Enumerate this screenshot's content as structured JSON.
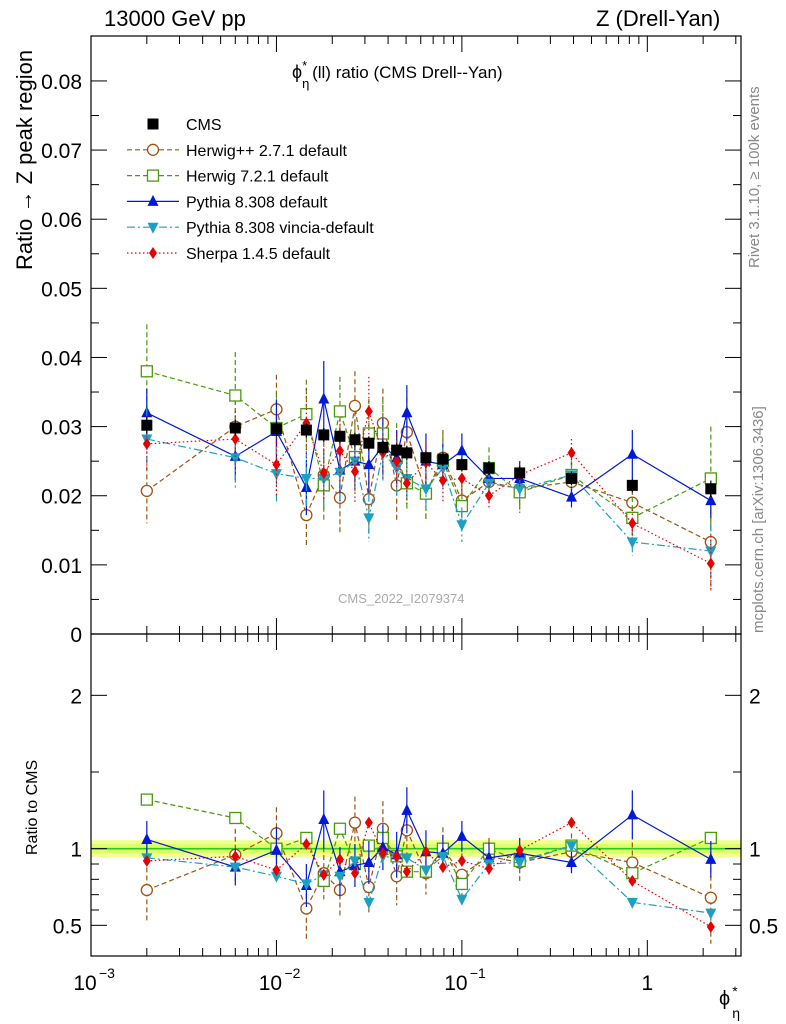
{
  "header": {
    "left": "13000 GeV pp",
    "right": "Z (Drell-Yan)"
  },
  "side_labels": {
    "rivet": "Rivet 3.1.10, ≥ 100k events",
    "mcplots": "mcplots.cern.ch [arXiv:1306.3436]"
  },
  "watermark": "CMS_2022_I2079374",
  "colors": {
    "cms": "#000000",
    "herwigpp": "#a0520e",
    "herwig7": "#4a9a0f",
    "pythia": "#0018d8",
    "vincia": "#1aa0c0",
    "sherpa": "#e80000",
    "band_inner": "#ddff66",
    "band_line": "#22cc22"
  },
  "chart_data": [
    {
      "type": "line",
      "title": "ϕ*η(ll) ratio (CMS Drell--Yan)",
      "title_main": "ϕ",
      "title_sup": "*",
      "title_sub": "η",
      "title_rest": "(ll) ratio (CMS Drell--Yan)",
      "ylabel": "Ratio → Z peak region",
      "xscale": "log",
      "xlim": [
        0.001,
        3.2
      ],
      "ylim": [
        0,
        0.0865
      ],
      "yticks": [
        0,
        0.01,
        0.02,
        0.03,
        0.04,
        0.05,
        0.06,
        0.07,
        0.08
      ],
      "ytick_labels": [
        "0",
        "0.01",
        "0.02",
        "0.03",
        "0.04",
        "0.05",
        "0.06",
        "0.07",
        "0.08"
      ],
      "legend_position": "top-left",
      "x": [
        0.002,
        0.006,
        0.01,
        0.0145,
        0.018,
        0.022,
        0.0265,
        0.0315,
        0.0375,
        0.0445,
        0.0505,
        0.064,
        0.079,
        0.1,
        0.14,
        0.205,
        0.39,
        0.83,
        2.2
      ],
      "series": [
        {
          "name": "CMS",
          "key": "cms",
          "marker": "square",
          "line": "none",
          "values": [
            0.0302,
            0.0298,
            0.0297,
            0.0295,
            0.0288,
            0.0286,
            0.0281,
            0.0276,
            0.027,
            0.0266,
            0.0262,
            0.0255,
            0.0253,
            0.0245,
            0.024,
            0.0233,
            0.0225,
            0.0215,
            0.021
          ],
          "errors": [
            0.0012,
            0.0011,
            0.001,
            0.001,
            0.001,
            0.001,
            0.001,
            0.001,
            0.001,
            0.001,
            0.001,
            0.001,
            0.001,
            0.001,
            0.001,
            0.001,
            0.001,
            0.001,
            0.0012
          ]
        },
        {
          "name": "Herwig++ 2.7.1 default",
          "key": "herwigpp",
          "marker": "circle-open",
          "line": "dash",
          "values": [
            0.0207,
            0.03,
            0.0325,
            0.0172,
            0.023,
            0.0197,
            0.033,
            0.0195,
            0.0305,
            0.0215,
            0.0292,
            0.0204,
            0.0255,
            0.0193,
            0.022,
            0.021,
            0.022,
            0.019,
            0.0133
          ],
          "errors": [
            0.0047,
            0.005,
            0.005,
            0.0045,
            0.005,
            0.005,
            0.005,
            0.005,
            0.005,
            0.005,
            0.005,
            0.004,
            0.004,
            0.004,
            0.003,
            0.003,
            0.003,
            0.003,
            0.007
          ]
        },
        {
          "name": "Herwig 7.2.1 default",
          "key": "herwig7",
          "marker": "square-open",
          "line": "dash",
          "values": [
            0.038,
            0.0345,
            0.0298,
            0.0318,
            0.0215,
            0.0322,
            0.0256,
            0.029,
            0.029,
            0.0255,
            0.0218,
            0.0203,
            0.025,
            0.0185,
            0.024,
            0.0205,
            0.023,
            0.0168,
            0.0225
          ],
          "errors": [
            0.0068,
            0.0063,
            0.005,
            0.005,
            0.005,
            0.005,
            0.005,
            0.005,
            0.005,
            0.005,
            0.004,
            0.004,
            0.004,
            0.004,
            0.003,
            0.003,
            0.003,
            0.003,
            0.0075
          ]
        },
        {
          "name": "Pythia 8.308 default",
          "key": "pythia",
          "marker": "triangle-up",
          "line": "solid",
          "values": [
            0.032,
            0.0257,
            0.0293,
            0.0212,
            0.034,
            0.0237,
            0.025,
            0.0245,
            0.0272,
            0.0255,
            0.032,
            0.025,
            0.0245,
            0.0265,
            0.0225,
            0.0225,
            0.0198,
            0.026,
            0.0193
          ],
          "errors": [
            0.0035,
            0.0035,
            0.0045,
            0.004,
            0.0055,
            0.0045,
            0.004,
            0.004,
            0.004,
            0.004,
            0.004,
            0.004,
            0.003,
            0.0025,
            0.0025,
            0.0025,
            0.0015,
            0.0035,
            0.0025
          ]
        },
        {
          "name": "Pythia 8.308 vincia-default",
          "key": "vincia",
          "marker": "triangle-down",
          "line": "dashdot",
          "values": [
            0.0282,
            0.0255,
            0.0232,
            0.0225,
            0.0225,
            0.0234,
            0.025,
            0.0168,
            0.0262,
            0.024,
            0.0225,
            0.021,
            0.024,
            0.0158,
            0.0218,
            0.021,
            0.023,
            0.0133,
            0.012
          ],
          "errors": [
            0.0045,
            0.0045,
            0.004,
            0.004,
            0.004,
            0.004,
            0.004,
            0.0035,
            0.004,
            0.004,
            0.003,
            0.003,
            0.003,
            0.0025,
            0.002,
            0.002,
            0.002,
            0.002,
            0.004
          ]
        },
        {
          "name": "Sherpa 1.4.5 default",
          "key": "sherpa",
          "marker": "diamond",
          "line": "dot",
          "values": [
            0.0275,
            0.0282,
            0.0245,
            0.0305,
            0.0233,
            0.0265,
            0.0235,
            0.0322,
            0.0262,
            0.025,
            0.0218,
            0.0248,
            0.0222,
            0.0225,
            0.02,
            0.023,
            0.0262,
            0.016,
            0.0102
          ],
          "errors": [
            0.004,
            0.004,
            0.0045,
            0.005,
            0.004,
            0.0045,
            0.0045,
            0.005,
            0.004,
            0.004,
            0.003,
            0.003,
            0.003,
            0.0025,
            0.002,
            0.002,
            0.002,
            0.002,
            0.004
          ]
        }
      ]
    },
    {
      "type": "line",
      "ylabel": "Ratio to CMS",
      "xlabel": "ϕ*η",
      "xlabel_main": "ϕ",
      "xlabel_sup": "*",
      "xlabel_sub": "η",
      "xscale": "log",
      "xlim": [
        0.001,
        3.2
      ],
      "ylim": [
        0.3,
        2.4
      ],
      "yticks": [
        0.5,
        1,
        2
      ],
      "ytick_labels": [
        "0.5",
        "1",
        "2"
      ],
      "xticks": [
        0.001,
        0.01,
        0.1,
        1
      ],
      "xtick_labels": [
        {
          "base": "10",
          "exp": "−3"
        },
        {
          "base": "10",
          "exp": "−2"
        },
        {
          "base": "10",
          "exp": "−1"
        },
        {
          "base": "1",
          "exp": ""
        }
      ],
      "reference_band": [
        0.97,
        1.03
      ],
      "x": [
        0.002,
        0.006,
        0.01,
        0.0145,
        0.018,
        0.022,
        0.0265,
        0.0315,
        0.0375,
        0.0445,
        0.0505,
        0.064,
        0.079,
        0.1,
        0.14,
        0.205,
        0.39,
        0.83,
        2.2
      ],
      "series": [
        {
          "name": "Herwig++ 2.7.1 default",
          "key": "herwigpp",
          "marker": "circle-open",
          "line": "dash",
          "values": [
            0.73,
            0.96,
            1.1,
            0.61,
            0.84,
            0.73,
            1.17,
            0.75,
            1.13,
            0.82,
            1.12,
            0.84,
            1.0,
            0.83,
            0.95,
            0.91,
            0.98,
            0.91,
            0.68
          ],
          "errors": [
            0.2,
            0.17,
            0.17,
            0.2,
            0.17,
            0.18,
            0.17,
            0.18,
            0.18,
            0.19,
            0.17,
            0.14,
            0.14,
            0.14,
            0.12,
            0.12,
            0.12,
            0.13,
            0.3
          ]
        },
        {
          "name": "Herwig 7.2.1 default",
          "key": "herwig7",
          "marker": "square-open",
          "line": "dash",
          "values": [
            1.32,
            1.2,
            1.0,
            1.07,
            0.79,
            1.13,
            0.9,
            1.02,
            1.07,
            0.95,
            0.85,
            0.85,
            1.0,
            0.77,
            1.0,
            0.92,
            1.02,
            0.84,
            1.07
          ]
        },
        {
          "name": "Pythia 8.308 default",
          "key": "pythia",
          "marker": "triangle-up",
          "line": "solid",
          "values": [
            1.06,
            0.88,
            0.99,
            0.76,
            1.19,
            0.85,
            0.89,
            0.91,
            1.01,
            0.96,
            1.25,
            0.98,
            0.97,
            1.08,
            0.94,
            0.97,
            0.91,
            1.22,
            0.93
          ],
          "errors": [
            0.12,
            0.12,
            0.15,
            0.14,
            0.19,
            0.16,
            0.14,
            0.14,
            0.15,
            0.15,
            0.15,
            0.14,
            0.12,
            0.1,
            0.1,
            0.1,
            0.07,
            0.16,
            0.12
          ]
        },
        {
          "name": "Pythia 8.308 vincia-default",
          "key": "vincia",
          "marker": "triangle-down",
          "line": "dashdot",
          "values": [
            0.94,
            0.88,
            0.82,
            0.77,
            0.83,
            0.82,
            0.92,
            0.65,
            0.95,
            0.94,
            0.94,
            0.86,
            0.95,
            0.67,
            0.9,
            0.91,
            1.02,
            0.65,
            0.58
          ]
        },
        {
          "name": "Sherpa 1.4.5 default",
          "key": "sherpa",
          "marker": "diamond",
          "line": "dot",
          "values": [
            0.92,
            0.95,
            0.86,
            1.03,
            0.83,
            0.93,
            0.84,
            1.17,
            0.97,
            0.95,
            0.85,
            0.98,
            0.88,
            0.92,
            0.87,
            0.99,
            1.17,
            0.79,
            0.49
          ]
        }
      ]
    }
  ]
}
